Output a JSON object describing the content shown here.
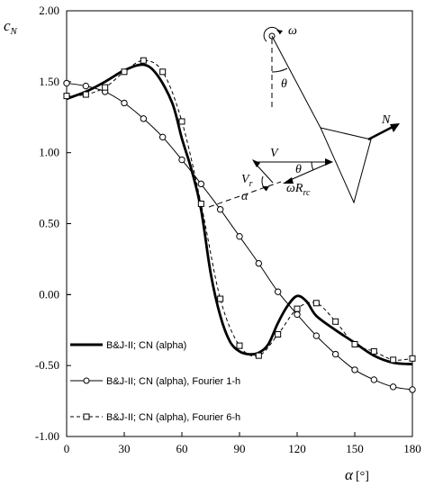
{
  "chart_data": {
    "type": "line",
    "title": "",
    "xlabel": "α",
    "xunit": "[°]",
    "ylabel": "c",
    "ylabel_sub": "N",
    "xlim": [
      0,
      180
    ],
    "ylim": [
      -1.0,
      2.0
    ],
    "xticks": [
      0,
      30,
      60,
      90,
      120,
      150,
      180
    ],
    "xtick_labels": [
      "0",
      "30",
      "60",
      "90",
      "120",
      "150",
      "180"
    ],
    "yticks": [
      -1.0,
      -0.5,
      0.0,
      0.5,
      1.0,
      1.5,
      2.0
    ],
    "ytick_labels": [
      "-1.00",
      "-0.50",
      "0.00",
      "0.50",
      "1.00",
      "1.50",
      "2.00"
    ],
    "legend_position": "bottom-left",
    "series": [
      {
        "name": "B&J-II; CN (alpha)",
        "style": "thick-solid",
        "color": "#000000",
        "x": [
          0,
          10,
          20,
          30,
          40,
          47,
          55,
          60,
          65,
          70,
          75,
          80,
          85,
          90,
          95,
          100,
          105,
          110,
          115,
          120,
          125,
          130,
          140,
          150,
          160,
          170,
          180
        ],
        "y": [
          1.38,
          1.43,
          1.5,
          1.58,
          1.62,
          1.55,
          1.35,
          1.1,
          0.88,
          0.6,
          0.15,
          -0.15,
          -0.33,
          -0.4,
          -0.42,
          -0.41,
          -0.35,
          -0.2,
          -0.08,
          -0.01,
          -0.05,
          -0.15,
          -0.25,
          -0.34,
          -0.43,
          -0.48,
          -0.49
        ]
      },
      {
        "name": "B&J-II; CN (alpha), Fourier 1-h",
        "style": "thin-solid-circle",
        "color": "#000000",
        "x": [
          0,
          10,
          20,
          30,
          40,
          50,
          60,
          70,
          80,
          90,
          100,
          110,
          120,
          130,
          140,
          150,
          160,
          170,
          180
        ],
        "y": [
          1.49,
          1.47,
          1.43,
          1.35,
          1.24,
          1.11,
          0.95,
          0.78,
          0.6,
          0.41,
          0.22,
          0.02,
          -0.14,
          -0.29,
          -0.42,
          -0.53,
          -0.6,
          -0.65,
          -0.67
        ]
      },
      {
        "name": "B&J-II; CN (alpha), Fourier 6-h",
        "style": "thin-dashed-square",
        "color": "#000000",
        "x": [
          0,
          10,
          20,
          30,
          40,
          50,
          60,
          70,
          80,
          90,
          100,
          110,
          120,
          130,
          140,
          150,
          160,
          170,
          180
        ],
        "y": [
          1.4,
          1.41,
          1.46,
          1.57,
          1.65,
          1.57,
          1.22,
          0.64,
          -0.03,
          -0.36,
          -0.43,
          -0.28,
          -0.1,
          -0.06,
          -0.19,
          -0.35,
          -0.4,
          -0.46,
          -0.45
        ]
      }
    ],
    "inset_labels": {
      "omega": "ω",
      "theta_top": "θ",
      "N": "N",
      "V": "V",
      "theta_bottom": "θ",
      "Vr": "V",
      "Vr_sub": "r",
      "alpha": "α",
      "omega_R": "ωR",
      "omega_R_sub": "rc"
    }
  }
}
